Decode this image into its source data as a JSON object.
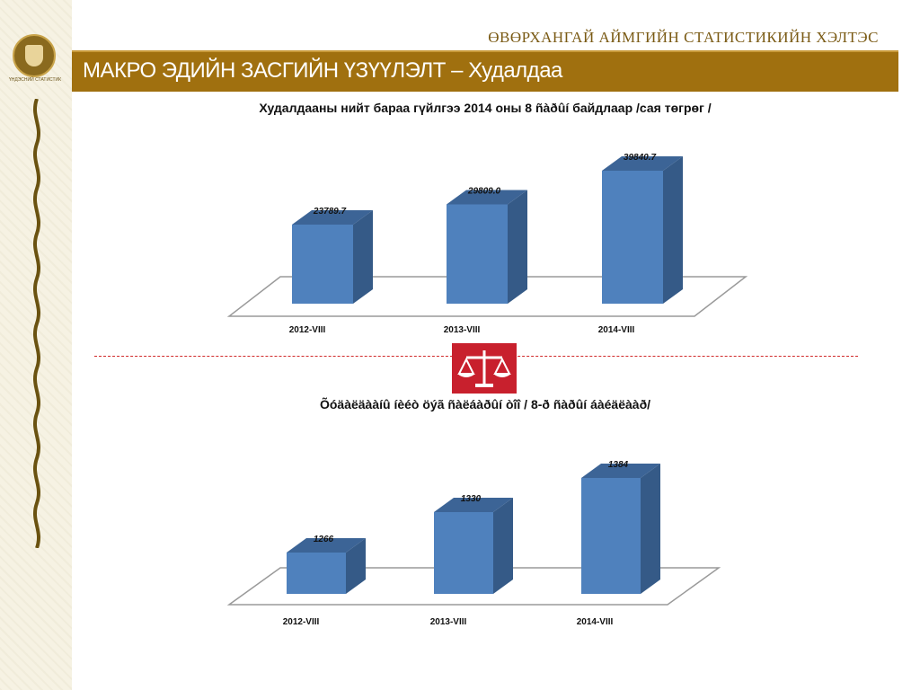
{
  "header": {
    "org_title": "ӨВӨРХАНГАЙ АЙМГИЙН СТАТИСТИКИЙН ХЭЛТЭС",
    "slide_title": "МАКРО ЭДИЙН ЗАСГИЙН ҮЗҮҮЛЭЛТ – Худалдаа"
  },
  "sidebar": {
    "emblem_caption": "ҮНДЭСНИЙ СТАТИСТИК"
  },
  "colors": {
    "bar_front": "#4f81bd",
    "bar_side": "#355a87",
    "bar_top": "#3c6496",
    "title_bar": "#a0700f",
    "divider": "#d02a2a",
    "icon_bg": "#c8202d"
  },
  "icon": "scales-of-justice-icon",
  "chart_data": [
    {
      "type": "bar",
      "title": "Худалдааны нийт бараа гүйлгээ 2014 оны  8  ñàðûí  байдлаар /сая төгрөг /",
      "categories": [
        "2012-VIII",
        "2013-VIII",
        "2014-VIII"
      ],
      "values": [
        23789.7,
        29809.0,
        39840.7
      ],
      "value_labels": [
        "23789.7",
        "29809.0",
        "39840.7"
      ],
      "ylim": [
        0,
        42000
      ],
      "grid": false,
      "legend": "none"
    },
    {
      "type": "bar",
      "title": "Õóäàëäààíû íèéò öýã ñàëáàðûí òîî / 8-ð ñàðûí áàéäëààð/",
      "categories": [
        "2012-VIII",
        "2013-VIII",
        "2014-VIII"
      ],
      "values": [
        1266,
        1330,
        1384
      ],
      "value_labels": [
        "1266",
        "1330",
        "1384"
      ],
      "ylim": [
        1200,
        1400
      ],
      "grid": false,
      "legend": "none"
    }
  ]
}
